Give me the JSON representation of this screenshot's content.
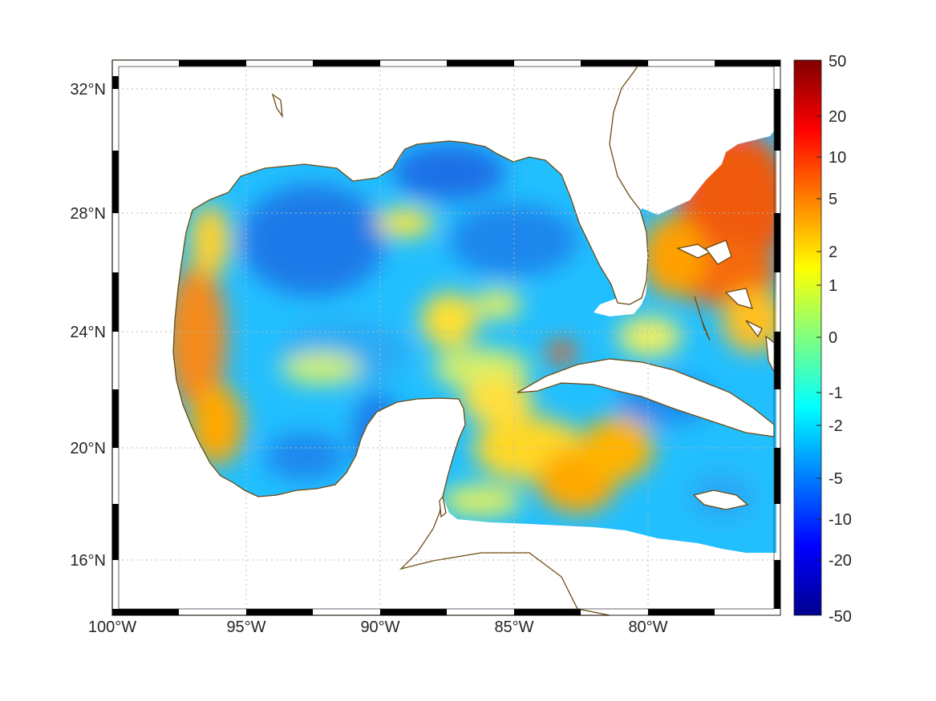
{
  "map": {
    "longitude_labels": [
      "100°W",
      "95°W",
      "90°W",
      "85°W",
      "80°W"
    ],
    "latitude_labels": [
      "32°N",
      "28°N",
      "24°N",
      "20°N",
      "16°N"
    ],
    "land_color": "#ffffff",
    "coastline_color": "#6b4a12",
    "field_description_colors": {
      "strong_positive": "#f05a0a",
      "moderate_positive": "#ffb000",
      "near_zero": "#c8f04a",
      "weak_negative": "#19d2ff",
      "moderate_negative": "#1a7ae8"
    }
  },
  "colorbar": {
    "tick_labels": [
      "50",
      "20",
      "10",
      "5",
      "2",
      "1",
      "0",
      "-1",
      "-2",
      "-5",
      "-10",
      "-20",
      "-50"
    ],
    "colormap": "jet",
    "min_color": "#00008f",
    "max_color": "#800000"
  }
}
